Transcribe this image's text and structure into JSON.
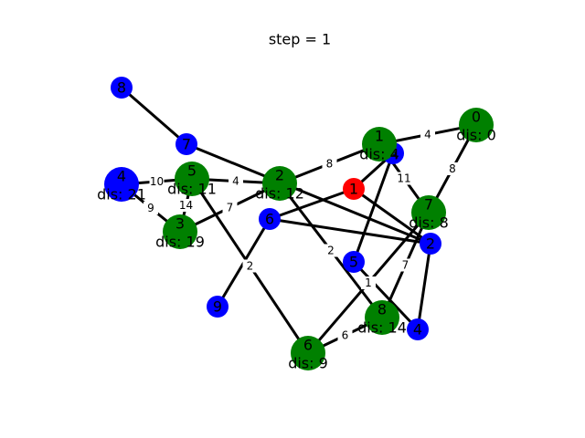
{
  "title": "step = 1",
  "colors": {
    "visited": "#008000",
    "unvisited": "#0000ff",
    "current": "#ff0000",
    "edge": "#000000"
  },
  "graph_a": {
    "nodes": [
      {
        "id": "0",
        "state": "visited",
        "dis": "dis: 0"
      },
      {
        "id": "1",
        "state": "visited",
        "dis": "dis: 4"
      },
      {
        "id": "2",
        "state": "visited",
        "dis": "dis: 12"
      },
      {
        "id": "3",
        "state": "visited",
        "dis": "dis: 19"
      },
      {
        "id": "4",
        "state": "unvisited",
        "dis": "dis: 21"
      },
      {
        "id": "5",
        "state": "visited",
        "dis": "dis: 11"
      },
      {
        "id": "6",
        "state": "visited",
        "dis": "dis: 9"
      },
      {
        "id": "7",
        "state": "visited",
        "dis": "dis: 8"
      },
      {
        "id": "8",
        "state": "visited",
        "dis": "dis: 14"
      }
    ],
    "edges": [
      {
        "from": "0",
        "to": "1",
        "weight": "4"
      },
      {
        "from": "0",
        "to": "7",
        "weight": "8"
      },
      {
        "from": "1",
        "to": "2",
        "weight": "8"
      },
      {
        "from": "1",
        "to": "7",
        "weight": "11"
      },
      {
        "from": "2",
        "to": "5",
        "weight": "4"
      },
      {
        "from": "2",
        "to": "3",
        "weight": "7"
      },
      {
        "from": "2",
        "to": "8",
        "weight": "2"
      },
      {
        "from": "5",
        "to": "4",
        "weight": "10"
      },
      {
        "from": "5",
        "to": "3",
        "weight": "14"
      },
      {
        "from": "3",
        "to": "4",
        "weight": "9"
      },
      {
        "from": "5",
        "to": "6",
        "weight": "2"
      },
      {
        "from": "7",
        "to": "6",
        "weight": "1"
      },
      {
        "from": "7",
        "to": "8",
        "weight": "7"
      },
      {
        "from": "6",
        "to": "8",
        "weight": "6"
      }
    ]
  },
  "graph_b": {
    "nodes": [
      {
        "id": "1",
        "state": "current"
      },
      {
        "id": "2",
        "state": "unvisited"
      },
      {
        "id": "4",
        "state": "unvisited"
      },
      {
        "id": "5",
        "state": "unvisited"
      },
      {
        "id": "6",
        "state": "unvisited"
      },
      {
        "id": "7",
        "state": "unvisited"
      },
      {
        "id": "8",
        "state": "unvisited"
      },
      {
        "id": "9",
        "state": "unvisited"
      },
      {
        "id": "A",
        "state": "unvisited"
      }
    ],
    "edges": [
      {
        "from": "8",
        "to": "7"
      },
      {
        "from": "7",
        "to": "2"
      },
      {
        "from": "1",
        "to": "A"
      },
      {
        "from": "1",
        "to": "6"
      },
      {
        "from": "1",
        "to": "2"
      },
      {
        "from": "A",
        "to": "5"
      },
      {
        "from": "6",
        "to": "2"
      },
      {
        "from": "6",
        "to": "9"
      },
      {
        "from": "5",
        "to": "4"
      },
      {
        "from": "2",
        "to": "4"
      }
    ]
  }
}
